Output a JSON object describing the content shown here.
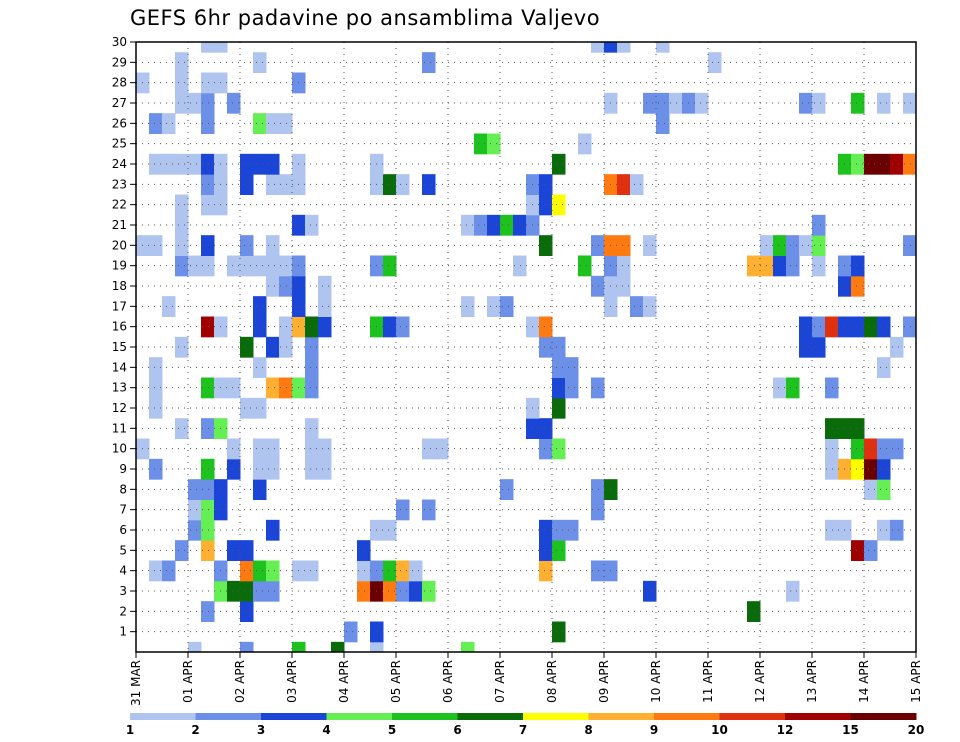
{
  "chart_data": {
    "type": "heatmap",
    "title": "GEFS 6hr padavine po ansamblima Valjevo",
    "x_tick_labels": [
      "31 MAR",
      "01 APR",
      "02 APR",
      "03 APR",
      "04 APR",
      "05 APR",
      "06 APR",
      "07 APR",
      "08 APR",
      "09 APR",
      "10 APR",
      "11 APR",
      "12 APR",
      "13 APR",
      "14 APR",
      "15 APR"
    ],
    "y_tick_labels": [
      "1",
      "2",
      "3",
      "4",
      "5",
      "6",
      "7",
      "8",
      "9",
      "10",
      "11",
      "12",
      "13",
      "14",
      "15",
      "16",
      "17",
      "18",
      "19",
      "20",
      "21",
      "22",
      "23",
      "24",
      "25",
      "26",
      "27",
      "28",
      "29",
      "30"
    ],
    "ylim": [
      0,
      30
    ],
    "x_steps": 60,
    "grid": true,
    "legend_position": "bottom",
    "legend_labels": [
      "1",
      "2",
      "3",
      "4",
      "5",
      "6",
      "7",
      "8",
      "9",
      "10",
      "12",
      "15",
      "20"
    ],
    "legend_colors": [
      "#b0c4f0",
      "#6c8fe8",
      "#1a45d6",
      "#66ee55",
      "#1ec21e",
      "#0a6b0a",
      "#ffff00",
      "#ffb030",
      "#ff7a10",
      "#e03010",
      "#a00000",
      "#6a0000"
    ],
    "cells": [
      [
        4,
        0,
        1
      ],
      [
        8,
        0,
        2
      ],
      [
        12,
        0,
        5
      ],
      [
        15,
        0,
        6
      ],
      [
        18,
        0,
        1
      ],
      [
        25,
        0,
        4
      ],
      [
        16,
        1,
        2
      ],
      [
        18,
        1,
        3
      ],
      [
        32,
        1,
        6
      ],
      [
        5,
        2,
        2
      ],
      [
        8,
        2,
        3
      ],
      [
        47,
        2,
        6
      ],
      [
        6,
        3,
        4
      ],
      [
        7,
        3,
        6
      ],
      [
        8,
        3,
        6
      ],
      [
        9,
        3,
        2
      ],
      [
        10,
        3,
        2
      ],
      [
        17,
        3,
        9
      ],
      [
        18,
        3,
        12
      ],
      [
        19,
        3,
        9
      ],
      [
        20,
        3,
        2
      ],
      [
        21,
        3,
        3
      ],
      [
        22,
        3,
        4
      ],
      [
        39,
        3,
        3
      ],
      [
        50,
        3,
        1
      ],
      [
        1,
        4,
        1
      ],
      [
        2,
        4,
        2
      ],
      [
        6,
        4,
        2
      ],
      [
        8,
        4,
        9
      ],
      [
        9,
        4,
        5
      ],
      [
        10,
        4,
        4
      ],
      [
        12,
        4,
        1
      ],
      [
        13,
        4,
        1
      ],
      [
        17,
        4,
        1
      ],
      [
        18,
        4,
        2
      ],
      [
        19,
        4,
        5
      ],
      [
        20,
        4,
        8
      ],
      [
        21,
        4,
        1
      ],
      [
        31,
        4,
        8
      ],
      [
        35,
        4,
        2
      ],
      [
        36,
        4,
        2
      ],
      [
        3,
        5,
        2
      ],
      [
        5,
        5,
        8
      ],
      [
        7,
        5,
        3
      ],
      [
        8,
        5,
        3
      ],
      [
        17,
        5,
        3
      ],
      [
        31,
        5,
        3
      ],
      [
        32,
        5,
        5
      ],
      [
        55,
        5,
        11
      ],
      [
        56,
        5,
        2
      ],
      [
        4,
        6,
        2
      ],
      [
        5,
        6,
        4
      ],
      [
        10,
        6,
        3
      ],
      [
        18,
        6,
        1
      ],
      [
        19,
        6,
        1
      ],
      [
        31,
        6,
        3
      ],
      [
        32,
        6,
        2
      ],
      [
        33,
        6,
        2
      ],
      [
        53,
        6,
        1
      ],
      [
        54,
        6,
        1
      ],
      [
        57,
        6,
        1
      ],
      [
        58,
        6,
        2
      ],
      [
        4,
        7,
        1
      ],
      [
        5,
        7,
        4
      ],
      [
        6,
        7,
        3
      ],
      [
        20,
        7,
        2
      ],
      [
        22,
        7,
        2
      ],
      [
        35,
        7,
        2
      ],
      [
        4,
        8,
        2
      ],
      [
        5,
        8,
        2
      ],
      [
        6,
        8,
        3
      ],
      [
        9,
        8,
        3
      ],
      [
        28,
        8,
        2
      ],
      [
        35,
        8,
        2
      ],
      [
        36,
        8,
        6
      ],
      [
        56,
        8,
        1
      ],
      [
        57,
        8,
        4
      ],
      [
        1,
        9,
        2
      ],
      [
        5,
        9,
        5
      ],
      [
        7,
        9,
        3
      ],
      [
        9,
        9,
        1
      ],
      [
        10,
        9,
        1
      ],
      [
        13,
        9,
        1
      ],
      [
        14,
        9,
        1
      ],
      [
        53,
        9,
        1
      ],
      [
        54,
        9,
        8
      ],
      [
        55,
        9,
        7
      ],
      [
        56,
        9,
        12
      ],
      [
        57,
        9,
        3
      ],
      [
        0,
        10,
        1
      ],
      [
        7,
        10,
        1
      ],
      [
        9,
        10,
        1
      ],
      [
        10,
        10,
        1
      ],
      [
        13,
        10,
        1
      ],
      [
        14,
        10,
        1
      ],
      [
        22,
        10,
        1
      ],
      [
        23,
        10,
        1
      ],
      [
        31,
        10,
        2
      ],
      [
        32,
        10,
        4
      ],
      [
        53,
        10,
        1
      ],
      [
        55,
        10,
        5
      ],
      [
        56,
        10,
        10
      ],
      [
        57,
        10,
        2
      ],
      [
        58,
        10,
        2
      ],
      [
        3,
        11,
        1
      ],
      [
        5,
        11,
        2
      ],
      [
        6,
        11,
        4
      ],
      [
        13,
        11,
        1
      ],
      [
        30,
        11,
        3
      ],
      [
        31,
        11,
        3
      ],
      [
        53,
        11,
        6
      ],
      [
        54,
        11,
        6
      ],
      [
        55,
        11,
        6
      ],
      [
        1,
        12,
        1
      ],
      [
        8,
        12,
        1
      ],
      [
        9,
        12,
        1
      ],
      [
        30,
        12,
        1
      ],
      [
        32,
        12,
        6
      ],
      [
        1,
        13,
        1
      ],
      [
        5,
        13,
        5
      ],
      [
        6,
        13,
        1
      ],
      [
        7,
        13,
        1
      ],
      [
        10,
        13,
        8
      ],
      [
        11,
        13,
        9
      ],
      [
        12,
        13,
        4
      ],
      [
        13,
        13,
        2
      ],
      [
        32,
        13,
        3
      ],
      [
        33,
        13,
        2
      ],
      [
        35,
        13,
        2
      ],
      [
        49,
        13,
        1
      ],
      [
        50,
        13,
        5
      ],
      [
        53,
        13,
        2
      ],
      [
        1,
        14,
        1
      ],
      [
        9,
        14,
        1
      ],
      [
        13,
        14,
        2
      ],
      [
        32,
        14,
        2
      ],
      [
        33,
        14,
        2
      ],
      [
        57,
        14,
        1
      ],
      [
        3,
        15,
        1
      ],
      [
        8,
        15,
        6
      ],
      [
        10,
        15,
        3
      ],
      [
        11,
        15,
        1
      ],
      [
        13,
        15,
        2
      ],
      [
        31,
        15,
        2
      ],
      [
        32,
        15,
        2
      ],
      [
        51,
        15,
        3
      ],
      [
        52,
        15,
        3
      ],
      [
        58,
        15,
        1
      ],
      [
        5,
        16,
        11
      ],
      [
        6,
        16,
        1
      ],
      [
        9,
        16,
        3
      ],
      [
        11,
        16,
        1
      ],
      [
        12,
        16,
        8
      ],
      [
        13,
        16,
        6
      ],
      [
        14,
        16,
        3
      ],
      [
        18,
        16,
        5
      ],
      [
        19,
        16,
        3
      ],
      [
        20,
        16,
        2
      ],
      [
        30,
        16,
        1
      ],
      [
        31,
        16,
        9
      ],
      [
        51,
        16,
        3
      ],
      [
        52,
        16,
        2
      ],
      [
        53,
        16,
        10
      ],
      [
        54,
        16,
        3
      ],
      [
        55,
        16,
        3
      ],
      [
        56,
        16,
        6
      ],
      [
        57,
        16,
        3
      ],
      [
        59,
        16,
        2
      ],
      [
        2,
        17,
        1
      ],
      [
        9,
        17,
        3
      ],
      [
        12,
        17,
        3
      ],
      [
        14,
        17,
        1
      ],
      [
        25,
        17,
        1
      ],
      [
        27,
        17,
        1
      ],
      [
        28,
        17,
        2
      ],
      [
        36,
        17,
        1
      ],
      [
        38,
        17,
        2
      ],
      [
        39,
        17,
        1
      ],
      [
        10,
        18,
        1
      ],
      [
        11,
        18,
        2
      ],
      [
        12,
        18,
        3
      ],
      [
        14,
        18,
        1
      ],
      [
        35,
        18,
        2
      ],
      [
        36,
        18,
        1
      ],
      [
        37,
        18,
        1
      ],
      [
        54,
        18,
        3
      ],
      [
        55,
        18,
        9
      ],
      [
        3,
        19,
        2
      ],
      [
        4,
        19,
        1
      ],
      [
        5,
        19,
        1
      ],
      [
        7,
        19,
        1
      ],
      [
        8,
        19,
        1
      ],
      [
        9,
        19,
        1
      ],
      [
        10,
        19,
        1
      ],
      [
        11,
        19,
        1
      ],
      [
        12,
        19,
        2
      ],
      [
        18,
        19,
        2
      ],
      [
        19,
        19,
        5
      ],
      [
        29,
        19,
        1
      ],
      [
        34,
        19,
        5
      ],
      [
        36,
        19,
        2
      ],
      [
        37,
        19,
        1
      ],
      [
        47,
        19,
        8
      ],
      [
        48,
        19,
        8
      ],
      [
        49,
        19,
        3
      ],
      [
        50,
        19,
        2
      ],
      [
        52,
        19,
        1
      ],
      [
        54,
        19,
        2
      ],
      [
        55,
        19,
        3
      ],
      [
        0,
        20,
        1
      ],
      [
        1,
        20,
        1
      ],
      [
        3,
        20,
        1
      ],
      [
        5,
        20,
        3
      ],
      [
        8,
        20,
        2
      ],
      [
        10,
        20,
        1
      ],
      [
        31,
        20,
        6
      ],
      [
        35,
        20,
        2
      ],
      [
        36,
        20,
        9
      ],
      [
        37,
        20,
        9
      ],
      [
        39,
        20,
        1
      ],
      [
        48,
        20,
        1
      ],
      [
        49,
        20,
        5
      ],
      [
        50,
        20,
        2
      ],
      [
        51,
        20,
        1
      ],
      [
        52,
        20,
        4
      ],
      [
        59,
        20,
        2
      ],
      [
        3,
        21,
        1
      ],
      [
        12,
        21,
        3
      ],
      [
        13,
        21,
        1
      ],
      [
        25,
        21,
        1
      ],
      [
        26,
        21,
        2
      ],
      [
        27,
        21,
        3
      ],
      [
        28,
        21,
        5
      ],
      [
        29,
        21,
        3
      ],
      [
        30,
        21,
        2
      ],
      [
        52,
        21,
        2
      ],
      [
        3,
        22,
        1
      ],
      [
        5,
        22,
        1
      ],
      [
        6,
        22,
        1
      ],
      [
        30,
        22,
        1
      ],
      [
        31,
        22,
        3
      ],
      [
        32,
        22,
        7
      ],
      [
        5,
        23,
        2
      ],
      [
        6,
        23,
        1
      ],
      [
        8,
        23,
        3
      ],
      [
        10,
        23,
        1
      ],
      [
        11,
        23,
        1
      ],
      [
        12,
        23,
        1
      ],
      [
        18,
        23,
        1
      ],
      [
        19,
        23,
        6
      ],
      [
        20,
        23,
        1
      ],
      [
        22,
        23,
        3
      ],
      [
        30,
        23,
        2
      ],
      [
        31,
        23,
        3
      ],
      [
        36,
        23,
        9
      ],
      [
        37,
        23,
        10
      ],
      [
        38,
        23,
        1
      ],
      [
        1,
        24,
        1
      ],
      [
        2,
        24,
        1
      ],
      [
        3,
        24,
        1
      ],
      [
        4,
        24,
        1
      ],
      [
        5,
        24,
        3
      ],
      [
        6,
        24,
        1
      ],
      [
        8,
        24,
        3
      ],
      [
        9,
        24,
        3
      ],
      [
        10,
        24,
        3
      ],
      [
        12,
        24,
        1
      ],
      [
        18,
        24,
        1
      ],
      [
        32,
        24,
        6
      ],
      [
        54,
        24,
        5
      ],
      [
        55,
        24,
        4
      ],
      [
        56,
        24,
        12
      ],
      [
        57,
        24,
        12
      ],
      [
        58,
        24,
        11
      ],
      [
        59,
        24,
        9
      ],
      [
        60,
        24,
        5
      ],
      [
        26,
        25,
        5
      ],
      [
        27,
        25,
        4
      ],
      [
        34,
        25,
        1
      ],
      [
        1,
        26,
        2
      ],
      [
        2,
        26,
        1
      ],
      [
        5,
        26,
        2
      ],
      [
        9,
        26,
        4
      ],
      [
        10,
        26,
        1
      ],
      [
        11,
        26,
        1
      ],
      [
        40,
        26,
        2
      ],
      [
        3,
        27,
        1
      ],
      [
        4,
        27,
        1
      ],
      [
        5,
        27,
        2
      ],
      [
        7,
        27,
        2
      ],
      [
        36,
        27,
        1
      ],
      [
        39,
        27,
        2
      ],
      [
        40,
        27,
        2
      ],
      [
        41,
        27,
        1
      ],
      [
        42,
        27,
        2
      ],
      [
        43,
        27,
        1
      ],
      [
        51,
        27,
        2
      ],
      [
        52,
        27,
        1
      ],
      [
        55,
        27,
        5
      ],
      [
        57,
        27,
        1
      ],
      [
        59,
        27,
        1
      ],
      [
        0,
        28,
        1
      ],
      [
        3,
        28,
        1
      ],
      [
        5,
        28,
        1
      ],
      [
        6,
        28,
        1
      ],
      [
        12,
        28,
        2
      ],
      [
        3,
        29,
        1
      ],
      [
        9,
        29,
        1
      ],
      [
        22,
        29,
        2
      ],
      [
        44,
        29,
        1
      ],
      [
        60,
        29,
        2
      ],
      [
        5,
        30,
        1
      ],
      [
        6,
        30,
        1
      ],
      [
        35,
        30,
        1
      ],
      [
        36,
        30,
        3
      ],
      [
        37,
        30,
        1
      ],
      [
        40,
        30,
        1
      ]
    ]
  }
}
